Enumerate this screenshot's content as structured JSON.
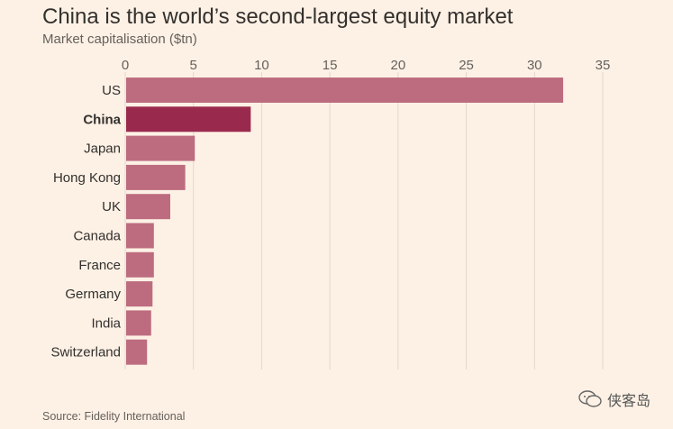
{
  "chart_data": {
    "type": "bar",
    "orientation": "horizontal",
    "title": "China is the world’s second-largest equity market",
    "subtitle": "Market capitalisation ($tn)",
    "categories": [
      "US",
      "China",
      "Japan",
      "Hong Kong",
      "UK",
      "Canada",
      "France",
      "Germany",
      "India",
      "Switzerland"
    ],
    "values": [
      32.1,
      9.2,
      5.1,
      4.4,
      3.3,
      2.1,
      2.1,
      2.0,
      1.9,
      1.6
    ],
    "highlight": "China",
    "xlim": [
      0,
      35
    ],
    "xticks": [
      0,
      5,
      10,
      15,
      20,
      25,
      30,
      35
    ],
    "grid": true,
    "colors": {
      "bar": "#bd6c80",
      "highlight": "#9a2a4d",
      "grid": "#e3d6cc",
      "background": "#fdf1e5"
    }
  },
  "source": "Source: Fidelity International",
  "watermark": {
    "text": "侠客岛",
    "icon": "chat-bubble-icon"
  }
}
